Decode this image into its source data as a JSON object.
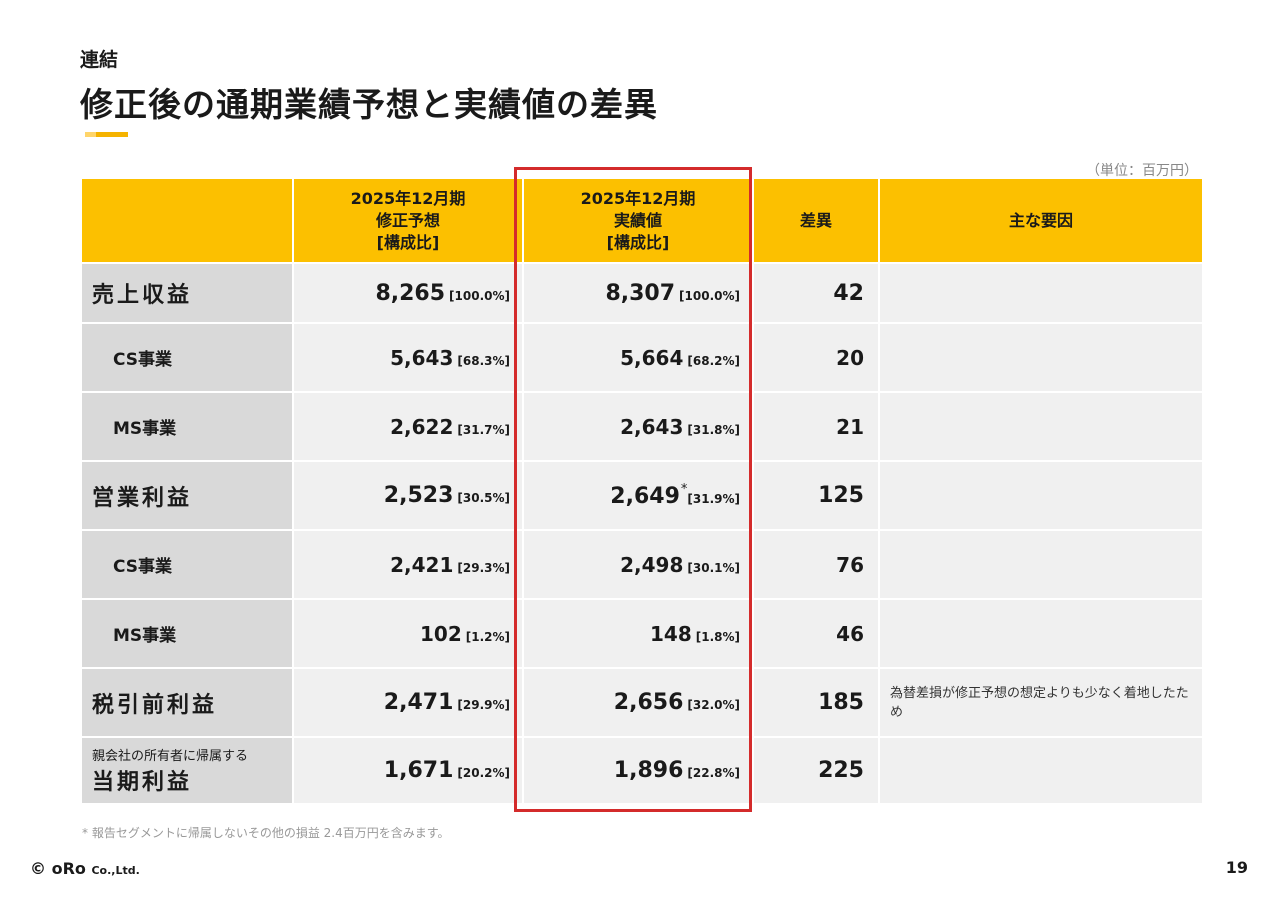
{
  "header": {
    "eyebrow": "連結",
    "title": "修正後の通期業績予想と実績値の差異",
    "unit": "（単位：百万円）"
  },
  "table": {
    "columns": {
      "forecast": [
        "2025年12月期",
        "修正予想",
        "[構成比]"
      ],
      "actual": [
        "2025年12月期",
        "実績値",
        "[構成比]"
      ],
      "diff": "差異",
      "reason": "主な要因"
    },
    "rows": [
      {
        "label": "売上収益",
        "forecast": "8,265",
        "forecast_ratio": "[100.0%]",
        "actual": "8,307",
        "actual_ratio": "[100.0%]",
        "diff": "42",
        "reason": ""
      },
      {
        "label": "CS事業",
        "forecast": "5,643",
        "forecast_ratio": "[68.3%]",
        "actual": "5,664",
        "actual_ratio": "[68.2%]",
        "diff": "20",
        "reason": ""
      },
      {
        "label": "MS事業",
        "forecast": "2,622",
        "forecast_ratio": "[31.7%]",
        "actual": "2,643",
        "actual_ratio": "[31.8%]",
        "diff": "21",
        "reason": ""
      },
      {
        "label": "営業利益",
        "forecast": "2,523",
        "forecast_ratio": "[30.5%]",
        "actual": "2,649",
        "actual_mark": "*",
        "actual_ratio": "[31.9%]",
        "diff": "125",
        "reason": ""
      },
      {
        "label": "CS事業",
        "forecast": "2,421",
        "forecast_ratio": "[29.3%]",
        "actual": "2,498",
        "actual_ratio": "[30.1%]",
        "diff": "76",
        "reason": ""
      },
      {
        "label": "MS事業",
        "forecast": "102",
        "forecast_ratio": "[1.2%]",
        "actual": "148",
        "actual_ratio": "[1.8%]",
        "diff": "46",
        "reason": ""
      },
      {
        "label": "税引前利益",
        "forecast": "2,471",
        "forecast_ratio": "[29.9%]",
        "actual": "2,656",
        "actual_ratio": "[32.0%]",
        "diff": "185",
        "reason": "為替差損が修正予想の想定よりも少なく着地したため"
      },
      {
        "label_small": "親会社の所有者に帰属する",
        "label": "当期利益",
        "forecast": "1,671",
        "forecast_ratio": "[20.2%]",
        "actual": "1,896",
        "actual_ratio": "[22.8%]",
        "diff": "225",
        "reason": ""
      }
    ]
  },
  "footnote": "* 報告セグメントに帰属しないその他の損益 2.4百万円を含みます。",
  "footer": {
    "copyright_symbol": "©",
    "company": "oRo",
    "company_suffix": "Co.,Ltd.",
    "page_number": "19"
  },
  "colors": {
    "accent": "#FCC000",
    "highlight": "#D42B2B"
  }
}
